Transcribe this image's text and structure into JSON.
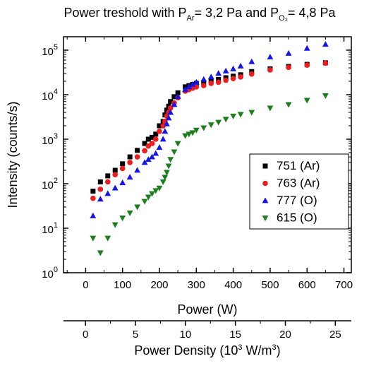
{
  "chart_data": {
    "type": "scatter",
    "title": {
      "prefix": "Power treshold with P",
      "sub1": "Ar",
      "middle": "= 3,2 Pa and P",
      "sub2": "O₂",
      "suffix": "= 4,8 Pa"
    },
    "ylabel": "Intensity (counts/s)",
    "xlabel": "Power (W)",
    "x2label": {
      "prefix": "Power Density (10",
      "sup1": "3",
      "middle": " W/m",
      "sup2": "3",
      "suffix": ")"
    },
    "xlim": [
      -60,
      720
    ],
    "xticks": [
      "0",
      "100",
      "200",
      "300",
      "400",
      "500",
      "600",
      "700"
    ],
    "x2lim": [
      -2.2,
      26.6
    ],
    "x2ticks": [
      "0",
      "5",
      "10",
      "15",
      "20",
      "25"
    ],
    "yscale": "log",
    "ylim": [
      1,
      200000
    ],
    "yticks": [
      {
        "base": "10",
        "exp": "0"
      },
      {
        "base": "10",
        "exp": "1"
      },
      {
        "base": "10",
        "exp": "2"
      },
      {
        "base": "10",
        "exp": "3"
      },
      {
        "base": "10",
        "exp": "4"
      },
      {
        "base": "10",
        "exp": "5"
      }
    ],
    "legend_position": "right",
    "series": [
      {
        "name": "751 (Ar)",
        "marker": "square",
        "color": "#000000",
        "x": [
          20,
          40,
          60,
          80,
          100,
          120,
          140,
          160,
          170,
          180,
          190,
          200,
          210,
          215,
          220,
          225,
          230,
          240,
          250,
          270,
          280,
          290,
          300,
          320,
          340,
          360,
          380,
          400,
          420,
          450,
          500,
          550,
          600,
          650
        ],
        "y": [
          68,
          110,
          150,
          200,
          280,
          400,
          560,
          800,
          1000,
          1100,
          1300,
          2000,
          2500,
          3500,
          4500,
          5500,
          7000,
          9000,
          11000,
          15000,
          16000,
          17000,
          18000,
          19000,
          21000,
          22000,
          24000,
          26000,
          28000,
          33000,
          38000,
          43000,
          48000,
          52000
        ]
      },
      {
        "name": "763 (Ar)",
        "marker": "circle",
        "color": "#ee1c1c",
        "x": [
          20,
          40,
          60,
          80,
          100,
          120,
          140,
          160,
          170,
          180,
          190,
          200,
          210,
          215,
          220,
          225,
          230,
          240,
          250,
          270,
          280,
          290,
          300,
          320,
          340,
          360,
          380,
          400,
          420,
          450,
          500,
          550,
          600,
          650
        ],
        "y": [
          47,
          75,
          110,
          160,
          220,
          300,
          400,
          550,
          700,
          800,
          1000,
          1500,
          2000,
          2500,
          3300,
          4000,
          5000,
          6500,
          8500,
          12000,
          13000,
          14000,
          15000,
          16000,
          18000,
          19000,
          21000,
          23000,
          25000,
          29000,
          36000,
          41000,
          46000,
          51000
        ]
      },
      {
        "name": "777 (O)",
        "marker": "triangle-up",
        "color": "#1515e8",
        "x": [
          20,
          40,
          60,
          80,
          100,
          120,
          140,
          160,
          170,
          180,
          190,
          200,
          210,
          215,
          220,
          225,
          230,
          240,
          250,
          270,
          280,
          290,
          300,
          320,
          340,
          360,
          380,
          400,
          420,
          450,
          500,
          550,
          600,
          650
        ],
        "y": [
          19,
          45,
          60,
          80,
          105,
          140,
          200,
          300,
          350,
          400,
          480,
          650,
          1000,
          1500,
          2200,
          3000,
          4000,
          6000,
          9000,
          13000,
          15000,
          17000,
          19000,
          22000,
          25000,
          30000,
          34000,
          38000,
          44000,
          55000,
          70000,
          85000,
          110000,
          135000
        ]
      },
      {
        "name": "615 (O)",
        "marker": "triangle-down",
        "color": "#1a7f1a",
        "x": [
          20,
          40,
          60,
          80,
          100,
          120,
          140,
          160,
          170,
          180,
          190,
          200,
          210,
          215,
          220,
          225,
          230,
          240,
          250,
          270,
          280,
          290,
          300,
          320,
          340,
          360,
          380,
          400,
          420,
          450,
          500,
          550,
          600,
          650
        ],
        "y": [
          6,
          2.8,
          6,
          12,
          17,
          22,
          30,
          40,
          50,
          60,
          70,
          80,
          110,
          140,
          180,
          250,
          350,
          520,
          800,
          1200,
          1300,
          1400,
          1600,
          1800,
          2100,
          2400,
          2800,
          3300,
          3600,
          4000,
          5000,
          6000,
          7500,
          9500
        ]
      }
    ]
  }
}
